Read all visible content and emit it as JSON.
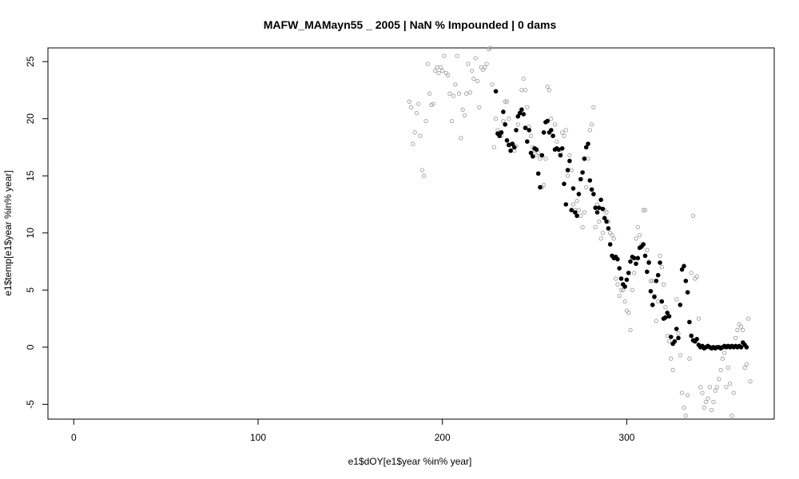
{
  "chart_data": {
    "type": "scatter",
    "title": "MAFW_MAMayn55 _ 2005   |   NaN  % Impounded |  0  dams",
    "xlabel": "e1$dOY[e1$year %in% year]",
    "ylabel": "e1$temp[e1$year %in% year]",
    "xlim": [
      -14,
      380
    ],
    "ylim": [
      -6.3,
      26.2
    ],
    "x_ticks": [
      0,
      100,
      200,
      300
    ],
    "y_ticks": [
      -5,
      0,
      5,
      10,
      15,
      20,
      25
    ],
    "grid": false,
    "series": [
      {
        "style": "open-circle-gray",
        "color": "#a0a0a0",
        "points": [
          [
            182,
            21.5
          ],
          [
            183,
            21.0
          ],
          [
            184,
            17.8
          ],
          [
            185,
            18.8
          ],
          [
            186,
            20.5
          ],
          [
            187,
            21.3
          ],
          [
            188,
            18.5
          ],
          [
            189,
            15.5
          ],
          [
            190,
            15.0
          ],
          [
            191,
            19.8
          ],
          [
            192,
            24.8
          ],
          [
            193,
            22.2
          ],
          [
            194,
            21.2
          ],
          [
            195,
            21.3
          ],
          [
            196,
            24.2
          ],
          [
            197,
            24.5
          ],
          [
            198,
            24.0
          ],
          [
            199,
            24.5
          ],
          [
            200,
            24.2
          ],
          [
            201,
            25.5
          ],
          [
            202,
            24.0
          ],
          [
            203,
            23.8
          ],
          [
            204,
            22.2
          ],
          [
            205,
            19.8
          ],
          [
            206,
            22.0
          ],
          [
            207,
            23.0
          ],
          [
            208,
            25.5
          ],
          [
            209,
            22.2
          ],
          [
            210,
            18.3
          ],
          [
            211,
            20.8
          ],
          [
            212,
            20.3
          ],
          [
            213,
            22.2
          ],
          [
            214,
            24.8
          ],
          [
            215,
            22.3
          ],
          [
            216,
            24.2
          ],
          [
            217,
            23.5
          ],
          [
            218,
            25.3
          ],
          [
            219,
            23.3
          ],
          [
            220,
            21.0
          ],
          [
            221,
            24.5
          ],
          [
            222,
            24.3
          ],
          [
            223,
            24.5
          ],
          [
            224,
            24.8
          ],
          [
            225,
            26.1
          ],
          [
            226,
            26.2
          ],
          [
            227,
            23.0
          ],
          [
            228,
            17.5
          ],
          [
            229,
            20.0
          ],
          [
            230,
            19.0
          ],
          [
            231,
            18.8
          ],
          [
            232,
            18.5
          ],
          [
            233,
            19.8
          ],
          [
            234,
            21.5
          ],
          [
            235,
            21.5
          ],
          [
            236,
            20.0
          ],
          [
            237,
            17.8
          ],
          [
            238,
            17.5
          ],
          [
            239,
            17.2
          ],
          [
            240,
            17.6
          ],
          [
            241,
            19.5
          ],
          [
            242,
            20.5
          ],
          [
            243,
            22.5
          ],
          [
            244,
            23.5
          ],
          [
            245,
            22.5
          ],
          [
            246,
            21.0
          ],
          [
            247,
            19.3
          ],
          [
            248,
            18.5
          ],
          [
            249,
            17.5
          ],
          [
            250,
            17.2
          ],
          [
            251,
            16.8
          ],
          [
            252,
            17.0
          ],
          [
            253,
            16.5
          ],
          [
            254,
            14.0
          ],
          [
            255,
            14.2
          ],
          [
            256,
            16.5
          ],
          [
            257,
            22.8
          ],
          [
            258,
            22.5
          ],
          [
            259,
            20.0
          ],
          [
            260,
            18.5
          ],
          [
            261,
            19.5
          ],
          [
            262,
            18.0
          ],
          [
            263,
            17.3
          ],
          [
            264,
            17.0
          ],
          [
            265,
            18.8
          ],
          [
            266,
            18.5
          ],
          [
            267,
            19.0
          ],
          [
            268,
            15.0
          ],
          [
            269,
            16.8
          ],
          [
            270,
            15.5
          ],
          [
            271,
            12.5
          ],
          [
            272,
            12.0
          ],
          [
            273,
            12.8
          ],
          [
            274,
            12.0
          ],
          [
            275,
            11.5
          ],
          [
            276,
            10.5
          ],
          [
            277,
            11.8
          ],
          [
            278,
            14.0
          ],
          [
            279,
            16.5
          ],
          [
            280,
            19.0
          ],
          [
            281,
            19.5
          ],
          [
            282,
            21.0
          ],
          [
            283,
            10.5
          ],
          [
            284,
            12.5
          ],
          [
            285,
            11.0
          ],
          [
            286,
            9.5
          ],
          [
            287,
            10.0
          ],
          [
            288,
            12.0
          ],
          [
            289,
            11.8
          ],
          [
            290,
            11.0
          ],
          [
            291,
            10.0
          ],
          [
            292,
            9.8
          ],
          [
            293,
            9.5
          ],
          [
            294,
            6.0
          ],
          [
            295,
            5.5
          ],
          [
            296,
            4.5
          ],
          [
            297,
            5.0
          ],
          [
            298,
            5.0
          ],
          [
            299,
            4.0
          ],
          [
            300,
            3.2
          ],
          [
            301,
            3.0
          ],
          [
            302,
            1.5
          ],
          [
            303,
            5.0
          ],
          [
            304,
            6.5
          ],
          [
            305,
            9.5
          ],
          [
            306,
            10.5
          ],
          [
            307,
            9.8
          ],
          [
            308,
            9.0
          ],
          [
            309,
            12.0
          ],
          [
            310,
            12.0
          ],
          [
            311,
            8.5
          ],
          [
            312,
            7.5
          ],
          [
            313,
            5.8
          ],
          [
            314,
            5.8
          ],
          [
            315,
            4.5
          ],
          [
            316,
            2.3
          ],
          [
            317,
            4.0
          ],
          [
            318,
            8.0
          ],
          [
            319,
            7.0
          ],
          [
            320,
            5.5
          ],
          [
            321,
            3.5
          ],
          [
            322,
            1.0
          ],
          [
            323,
            0.5
          ],
          [
            324,
            -1.0
          ],
          [
            325,
            -2.0
          ],
          [
            326,
            0.5
          ],
          [
            327,
            4.2
          ],
          [
            328,
            1.2
          ],
          [
            329,
            -0.7
          ],
          [
            330,
            -4.0
          ],
          [
            331,
            -5.3
          ],
          [
            332,
            -6.0
          ],
          [
            333,
            -4.2
          ],
          [
            334,
            -1.0
          ],
          [
            335,
            6.5
          ],
          [
            336,
            11.5
          ],
          [
            337,
            6.0
          ],
          [
            338,
            6.2
          ],
          [
            339,
            2.5
          ],
          [
            340,
            -3.5
          ],
          [
            341,
            -4.0
          ],
          [
            342,
            -5.3
          ],
          [
            343,
            -4.8
          ],
          [
            344,
            -4.5
          ],
          [
            345,
            -3.5
          ],
          [
            346,
            -5.5
          ],
          [
            347,
            -4.8
          ],
          [
            348,
            -3.8
          ],
          [
            349,
            -3.5
          ],
          [
            350,
            -2.8
          ],
          [
            351,
            -2.0
          ],
          [
            352,
            -1.0
          ],
          [
            353,
            -0.5
          ],
          [
            354,
            -3.5
          ],
          [
            355,
            -1.8
          ],
          [
            356,
            -3.2
          ],
          [
            357,
            -6.0
          ],
          [
            358,
            -4.0
          ],
          [
            359,
            0.8
          ],
          [
            360,
            1.5
          ],
          [
            361,
            2.0
          ],
          [
            362,
            1.8
          ],
          [
            363,
            1.5
          ],
          [
            364,
            -1.8
          ],
          [
            365,
            -1.5
          ],
          [
            366,
            2.5
          ],
          [
            367,
            -3.0
          ]
        ]
      },
      {
        "style": "filled-circle-black",
        "color": "#000000",
        "points": [
          [
            229,
            22.4
          ],
          [
            230,
            18.7
          ],
          [
            231,
            18.5
          ],
          [
            232,
            18.8
          ],
          [
            233,
            20.6
          ],
          [
            234,
            19.5
          ],
          [
            235,
            18.1
          ],
          [
            236,
            17.7
          ],
          [
            237,
            17.2
          ],
          [
            238,
            17.8
          ],
          [
            239,
            17.5
          ],
          [
            240,
            19.0
          ],
          [
            241,
            20.2
          ],
          [
            242,
            20.5
          ],
          [
            243,
            20.8
          ],
          [
            244,
            20.4
          ],
          [
            245,
            19.2
          ],
          [
            246,
            18.0
          ],
          [
            247,
            19.0
          ],
          [
            248,
            17.0
          ],
          [
            249,
            16.7
          ],
          [
            250,
            17.4
          ],
          [
            251,
            17.3
          ],
          [
            252,
            15.2
          ],
          [
            253,
            14.0
          ],
          [
            254,
            16.8
          ],
          [
            255,
            18.8
          ],
          [
            256,
            19.7
          ],
          [
            257,
            19.8
          ],
          [
            258,
            18.8
          ],
          [
            259,
            19.0
          ],
          [
            260,
            18.5
          ],
          [
            261,
            17.3
          ],
          [
            262,
            17.4
          ],
          [
            263,
            17.3
          ],
          [
            264,
            16.8
          ],
          [
            265,
            17.4
          ],
          [
            266,
            14.3
          ],
          [
            267,
            12.5
          ],
          [
            268,
            15.5
          ],
          [
            269,
            16.3
          ],
          [
            270,
            12.0
          ],
          [
            271,
            13.9
          ],
          [
            272,
            11.8
          ],
          [
            273,
            11.5
          ],
          [
            274,
            13.4
          ],
          [
            275,
            14.7
          ],
          [
            276,
            15.3
          ],
          [
            277,
            16.5
          ],
          [
            278,
            17.5
          ],
          [
            279,
            17.8
          ],
          [
            280,
            14.6
          ],
          [
            281,
            13.8
          ],
          [
            282,
            13.4
          ],
          [
            283,
            12.2
          ],
          [
            284,
            11.8
          ],
          [
            285,
            12.2
          ],
          [
            286,
            12.9
          ],
          [
            287,
            12.1
          ],
          [
            288,
            11.3
          ],
          [
            289,
            11.0
          ],
          [
            290,
            10.4
          ],
          [
            291,
            9.0
          ],
          [
            292,
            8.0
          ],
          [
            293,
            7.8
          ],
          [
            294,
            7.9
          ],
          [
            295,
            7.7
          ],
          [
            296,
            6.9
          ],
          [
            297,
            6.0
          ],
          [
            298,
            5.5
          ],
          [
            299,
            5.3
          ],
          [
            300,
            5.9
          ],
          [
            301,
            6.5
          ],
          [
            302,
            7.5
          ],
          [
            303,
            7.9
          ],
          [
            304,
            7.8
          ],
          [
            305,
            7.3
          ],
          [
            306,
            7.8
          ],
          [
            307,
            8.7
          ],
          [
            308,
            8.8
          ],
          [
            309,
            9.0
          ],
          [
            310,
            8.0
          ],
          [
            311,
            6.6
          ],
          [
            312,
            7.4
          ],
          [
            313,
            4.9
          ],
          [
            314,
            3.7
          ],
          [
            315,
            4.4
          ],
          [
            316,
            5.8
          ],
          [
            317,
            6.3
          ],
          [
            318,
            7.4
          ],
          [
            319,
            4.0
          ],
          [
            320,
            2.5
          ],
          [
            321,
            2.6
          ],
          [
            322,
            3.0
          ],
          [
            323,
            2.7
          ],
          [
            324,
            0.9
          ],
          [
            325,
            0.3
          ],
          [
            326,
            0.5
          ],
          [
            327,
            1.6
          ],
          [
            328,
            0.8
          ],
          [
            329,
            3.7
          ],
          [
            330,
            6.8
          ],
          [
            331,
            7.1
          ],
          [
            332,
            5.8
          ],
          [
            333,
            4.8
          ],
          [
            334,
            2.2
          ],
          [
            335,
            1.0
          ],
          [
            336,
            0.6
          ],
          [
            337,
            0.5
          ],
          [
            338,
            0.7
          ],
          [
            339,
            0.2
          ],
          [
            340,
            0.0
          ],
          [
            341,
            0.1
          ],
          [
            342,
            -0.1
          ],
          [
            343,
            0.0
          ],
          [
            344,
            0.1
          ],
          [
            345,
            0.0
          ],
          [
            346,
            -0.1
          ],
          [
            347,
            0.0
          ],
          [
            348,
            -0.1
          ],
          [
            349,
            0.0
          ],
          [
            350,
            0.0
          ],
          [
            351,
            -0.1
          ],
          [
            352,
            0.0
          ],
          [
            353,
            0.1
          ],
          [
            354,
            0.0
          ],
          [
            355,
            0.1
          ],
          [
            356,
            0.0
          ],
          [
            357,
            0.1
          ],
          [
            358,
            0.0
          ],
          [
            359,
            0.1
          ],
          [
            360,
            0.0
          ],
          [
            361,
            0.1
          ],
          [
            362,
            0.0
          ],
          [
            363,
            0.4
          ],
          [
            364,
            0.2
          ],
          [
            365,
            0.0
          ]
        ]
      }
    ]
  }
}
